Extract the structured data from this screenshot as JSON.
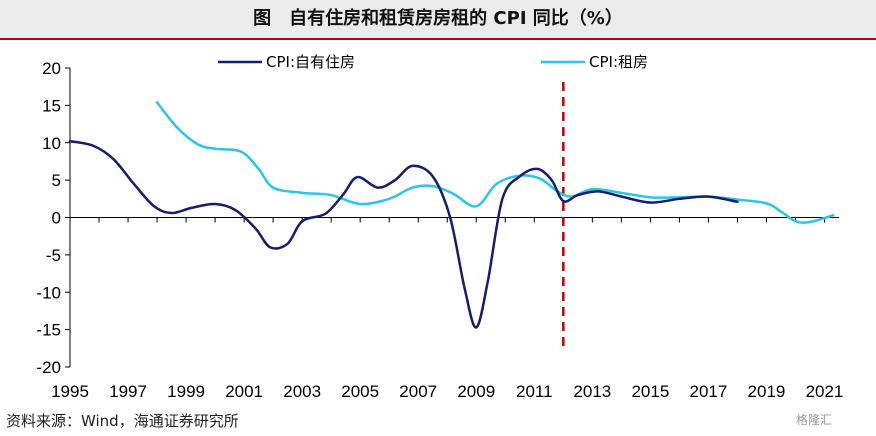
{
  "title": "图　自有住房和租赁房房租的 CPI 同比（%）",
  "source": "资料来源：Wind，海通证券研究所",
  "watermark": "格隆汇",
  "chart_data": {
    "type": "line",
    "title": "图　自有住房和租赁房房租的 CPI 同比（%）",
    "xlabel": "",
    "ylabel": "",
    "xlim": [
      1995,
      2021.5
    ],
    "ylim": [
      -20,
      20
    ],
    "x_ticks": [
      "1995",
      "1997",
      "1999",
      "2001",
      "2003",
      "2005",
      "2007",
      "2009",
      "2011",
      "2013",
      "2015",
      "2017",
      "2019",
      "2021"
    ],
    "y_ticks": [
      "20",
      "15",
      "10",
      "5",
      "0",
      "-5",
      "-10",
      "-15",
      "-20"
    ],
    "grid": false,
    "legend_position": "top",
    "reference_line": {
      "x": 2012,
      "style": "dashed",
      "color": "#c00000"
    },
    "series": [
      {
        "name": "CPI:自有住房",
        "color": "#141e6e",
        "x": [
          1995,
          1995.8,
          1996.5,
          1997.2,
          1997.9,
          1998.5,
          1999.2,
          2000,
          2000.7,
          2001.4,
          2001.9,
          2002.5,
          2003,
          2003.8,
          2004.4,
          2004.9,
          2005.6,
          2006.2,
          2006.8,
          2007.5,
          2008.1,
          2008.6,
          2009,
          2009.4,
          2009.9,
          2010.5,
          2011.1,
          2011.6,
          2012,
          2012.5,
          2013.2,
          2014,
          2015,
          2016,
          2017,
          2018
        ],
        "y": [
          10.2,
          9.6,
          7.8,
          4.5,
          1.5,
          0.6,
          1.3,
          1.8,
          1.0,
          -1.5,
          -4.0,
          -3.5,
          -0.5,
          0.5,
          3.0,
          5.4,
          4.0,
          5.0,
          6.9,
          5.5,
          0.0,
          -9.5,
          -14.7,
          -8.5,
          2.5,
          5.5,
          6.5,
          5.0,
          2.2,
          3.0,
          3.5,
          2.8,
          2.0,
          2.5,
          2.8,
          2.1
        ]
      },
      {
        "name": "CPI:租房",
        "color": "#29c5ea",
        "x": [
          1998,
          1998.7,
          1999.4,
          2000,
          2000.9,
          2001.5,
          2002,
          2003,
          2004,
          2005,
          2006,
          2006.8,
          2007.5,
          2008.2,
          2009,
          2009.7,
          2010.5,
          2011.2,
          2011.8,
          2012.3,
          2013,
          2014,
          2015,
          2016,
          2017,
          2018,
          2019,
          2019.5,
          2020,
          2020.5,
          2021.3
        ],
        "y": [
          15.4,
          12.0,
          9.8,
          9.2,
          8.8,
          6.5,
          4.0,
          3.3,
          3.0,
          1.8,
          2.5,
          4.0,
          4.2,
          3.2,
          1.5,
          4.5,
          5.6,
          5.2,
          3.5,
          2.8,
          3.8,
          3.3,
          2.7,
          2.7,
          2.8,
          2.4,
          1.9,
          0.8,
          -0.5,
          -0.6,
          0.3
        ]
      }
    ]
  }
}
